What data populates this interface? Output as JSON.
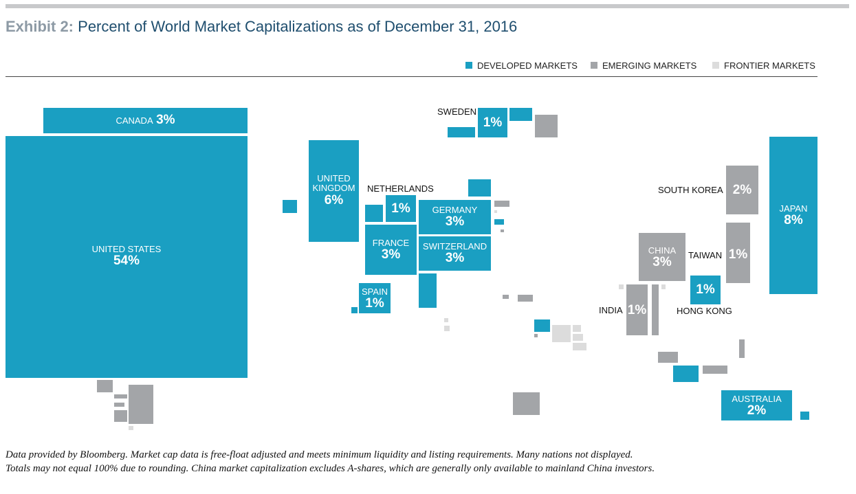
{
  "title": {
    "exhibit": "Exhibit 2:",
    "text": "Percent of World Market Capitalizations as of December 31, 2016"
  },
  "legend": {
    "developed": "DEVELOPED MARKETS",
    "emerging": "EMERGING MARKETS",
    "frontier": "FRONTIER MARKETS"
  },
  "colors": {
    "developed": "#1a9fc2",
    "emerging": "#a3a5a8",
    "frontier": "#dcdcdc"
  },
  "chart_data": {
    "type": "treemap",
    "unit": "%",
    "categories": [
      "DEVELOPED MARKETS",
      "EMERGING MARKETS",
      "FRONTIER MARKETS"
    ],
    "labeled": [
      {
        "name": "UNITED STATES",
        "value": 54,
        "category": "DEVELOPED MARKETS"
      },
      {
        "name": "JAPAN",
        "value": 8,
        "category": "DEVELOPED MARKETS"
      },
      {
        "name": "UNITED KINGDOM",
        "value": 6,
        "category": "DEVELOPED MARKETS"
      },
      {
        "name": "CANADA",
        "value": 3,
        "category": "DEVELOPED MARKETS"
      },
      {
        "name": "GERMANY",
        "value": 3,
        "category": "DEVELOPED MARKETS"
      },
      {
        "name": "FRANCE",
        "value": 3,
        "category": "DEVELOPED MARKETS"
      },
      {
        "name": "SWITZERLAND",
        "value": 3,
        "category": "DEVELOPED MARKETS"
      },
      {
        "name": "CHINA",
        "value": 3,
        "category": "EMERGING MARKETS"
      },
      {
        "name": "AUSTRALIA",
        "value": 2,
        "category": "DEVELOPED MARKETS"
      },
      {
        "name": "SOUTH KOREA",
        "value": 2,
        "category": "EMERGING MARKETS"
      },
      {
        "name": "NETHERLANDS",
        "value": 1,
        "category": "DEVELOPED MARKETS"
      },
      {
        "name": "SWEDEN",
        "value": 1,
        "category": "DEVELOPED MARKETS"
      },
      {
        "name": "SPAIN",
        "value": 1,
        "category": "DEVELOPED MARKETS"
      },
      {
        "name": "HONG KONG",
        "value": 1,
        "category": "DEVELOPED MARKETS"
      },
      {
        "name": "TAIWAN",
        "value": 1,
        "category": "EMERGING MARKETS"
      },
      {
        "name": "INDIA",
        "value": 1,
        "category": "EMERGING MARKETS"
      }
    ]
  },
  "labels": {
    "canada": {
      "name": "CANADA",
      "pct": "3%"
    },
    "us": {
      "name": "UNITED STATES",
      "pct": "54%"
    },
    "uk": {
      "name1": "UNITED",
      "name2": "KINGDOM",
      "pct": "6%"
    },
    "sweden": {
      "name": "SWEDEN",
      "pct": "1%"
    },
    "netherlands": {
      "name": "NETHERLANDS",
      "pct": "1%"
    },
    "germany": {
      "name": "GERMANY",
      "pct": "3%"
    },
    "france": {
      "name": "FRANCE",
      "pct": "3%"
    },
    "switzerland": {
      "name": "SWITZERLAND",
      "pct": "3%"
    },
    "spain": {
      "name": "SPAIN",
      "pct": "1%"
    },
    "southkorea": {
      "name": "SOUTH KOREA",
      "pct": "2%"
    },
    "japan": {
      "name": "JAPAN",
      "pct": "8%"
    },
    "china": {
      "name": "CHINA",
      "pct": "3%"
    },
    "taiwan": {
      "name": "TAIWAN",
      "pct": "1%"
    },
    "hongkong": {
      "name": "HONG KONG",
      "pct": "1%"
    },
    "india": {
      "name": "INDIA",
      "pct": "1%"
    },
    "australia": {
      "name": "AUSTRALIA",
      "pct": "2%"
    }
  },
  "footnote": {
    "line1": "Data provided by Bloomberg. Market cap data is free-float adjusted and meets minimum liquidity and listing requirements. Many nations not displayed.",
    "line2": "Totals may not equal 100% due to rounding. China market capitalization excludes A-shares, which are generally only available to mainland China investors."
  }
}
